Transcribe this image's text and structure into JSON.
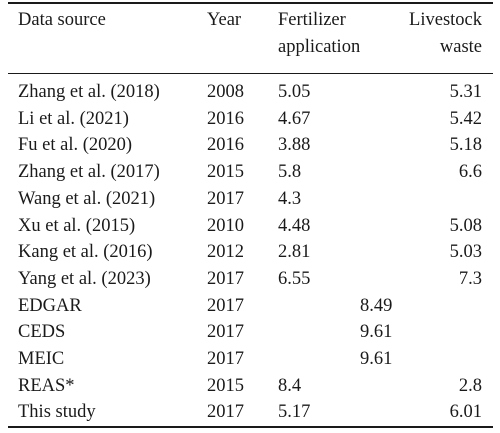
{
  "table": {
    "headers": {
      "source": "Data source",
      "year": "Year",
      "fertilizer_line1": "Fertilizer",
      "fertilizer_line2": "application",
      "livestock_line1": "Livestock",
      "livestock_line2": "waste"
    },
    "rows": [
      {
        "source": "Zhang et al. (2018)",
        "year": "2008",
        "fertilizer": "5.05",
        "livestock": "5.31",
        "total": ""
      },
      {
        "source": "Li et al. (2021)",
        "year": "2016",
        "fertilizer": "4.67",
        "livestock": "5.42",
        "total": ""
      },
      {
        "source": "Fu et al. (2020)",
        "year": "2016",
        "fertilizer": "3.88",
        "livestock": "5.18",
        "total": ""
      },
      {
        "source": "Zhang et al. (2017)",
        "year": "2015",
        "fertilizer": "5.8",
        "livestock": "6.6",
        "total": ""
      },
      {
        "source": "Wang et al. (2021)",
        "year": "2017",
        "fertilizer": "4.3",
        "livestock": "",
        "total": ""
      },
      {
        "source": "Xu et al. (2015)",
        "year": "2010",
        "fertilizer": "4.48",
        "livestock": "5.08",
        "total": ""
      },
      {
        "source": "Kang et al. (2016)",
        "year": "2012",
        "fertilizer": "2.81",
        "livestock": "5.03",
        "total": ""
      },
      {
        "source": "Yang et al. (2023)",
        "year": "2017",
        "fertilizer": "6.55",
        "livestock": "7.3",
        "total": ""
      },
      {
        "source": "EDGAR",
        "year": "2017",
        "fertilizer": "",
        "livestock": "",
        "total": "8.49"
      },
      {
        "source": "CEDS",
        "year": "2017",
        "fertilizer": "",
        "livestock": "",
        "total": "9.61"
      },
      {
        "source": "MEIC",
        "year": "2017",
        "fertilizer": "",
        "livestock": "",
        "total": "9.61"
      },
      {
        "source": "REAS*",
        "year": "2015",
        "fertilizer": "8.4",
        "livestock": "2.8",
        "total": ""
      },
      {
        "source": "This study",
        "year": "2017",
        "fertilizer": "5.17",
        "livestock": "6.01",
        "total": ""
      }
    ]
  }
}
